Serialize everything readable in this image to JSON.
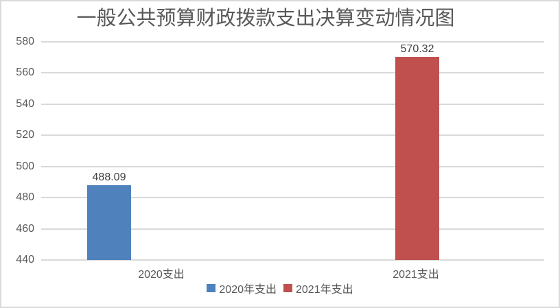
{
  "chart_data": {
    "type": "bar",
    "title": "一般公共预算财政拨款支出决算变动情况图",
    "categories": [
      "2020支出",
      "2021支出"
    ],
    "series": [
      {
        "name": "2020年支出",
        "color": "#4f81bd",
        "values": [
          488.09,
          null
        ]
      },
      {
        "name": "2021年支出",
        "color": "#c0504d",
        "values": [
          null,
          570.32
        ]
      }
    ],
    "data_labels": [
      "488.09",
      "570.32"
    ],
    "ylim": [
      440,
      580
    ],
    "yticks": [
      580,
      560,
      540,
      520,
      500,
      480,
      460,
      440
    ],
    "grid": "horizontal",
    "legend_position": "bottom",
    "colors": {
      "grid": "#d9d9d9",
      "axis_text": "#595959",
      "title_text": "#595959",
      "data_label_text": "#404040",
      "border": "#d9d9d9",
      "background": "#ffffff"
    }
  }
}
